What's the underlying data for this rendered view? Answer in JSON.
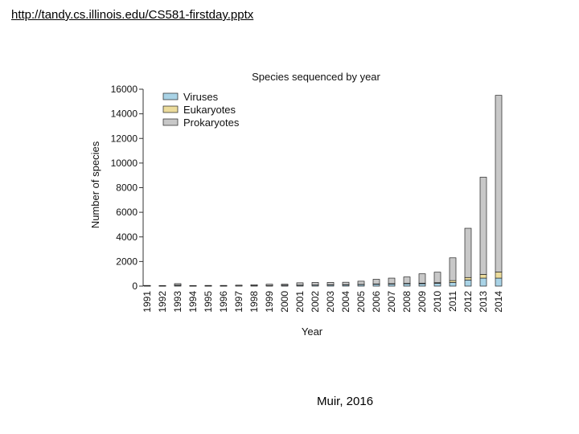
{
  "slide": {
    "url": "http://tandy.cs.illinois.edu/CS581-firstday.pptx",
    "credit": "Muir, 2016"
  },
  "chart_data": {
    "type": "bar",
    "stacked": true,
    "title": "Species sequenced by year",
    "xlabel": "Year",
    "ylabel": "Number of species",
    "ylim": [
      0,
      16000
    ],
    "yticks": [
      0,
      2000,
      4000,
      6000,
      8000,
      10000,
      12000,
      14000,
      16000
    ],
    "categories": [
      "1991",
      "1992",
      "1993",
      "1994",
      "1995",
      "1996",
      "1997",
      "1998",
      "1999",
      "2000",
      "2001",
      "2002",
      "2003",
      "2004",
      "2005",
      "2006",
      "2007",
      "2008",
      "2009",
      "2010",
      "2011",
      "2012",
      "2013",
      "2014"
    ],
    "series": [
      {
        "name": "Viruses",
        "color": "#a9d3e6",
        "values": [
          10,
          5,
          60,
          5,
          10,
          10,
          20,
          30,
          40,
          60,
          70,
          80,
          90,
          100,
          120,
          150,
          170,
          190,
          200,
          230,
          300,
          500,
          650,
          650
        ]
      },
      {
        "name": "Eukaryotes",
        "color": "#ecdc9c",
        "values": [
          0,
          0,
          20,
          0,
          0,
          0,
          0,
          5,
          5,
          10,
          10,
          10,
          15,
          15,
          20,
          25,
          30,
          35,
          40,
          50,
          150,
          200,
          300,
          500
        ]
      },
      {
        "name": "Prokaryotes",
        "color": "#c8c8c8",
        "values": [
          30,
          15,
          120,
          30,
          40,
          40,
          60,
          80,
          110,
          90,
          190,
          210,
          200,
          200,
          260,
          380,
          450,
          520,
          760,
          850,
          1850,
          4000,
          7900,
          14350
        ]
      }
    ],
    "legend_position": "top-left",
    "grid": false
  }
}
